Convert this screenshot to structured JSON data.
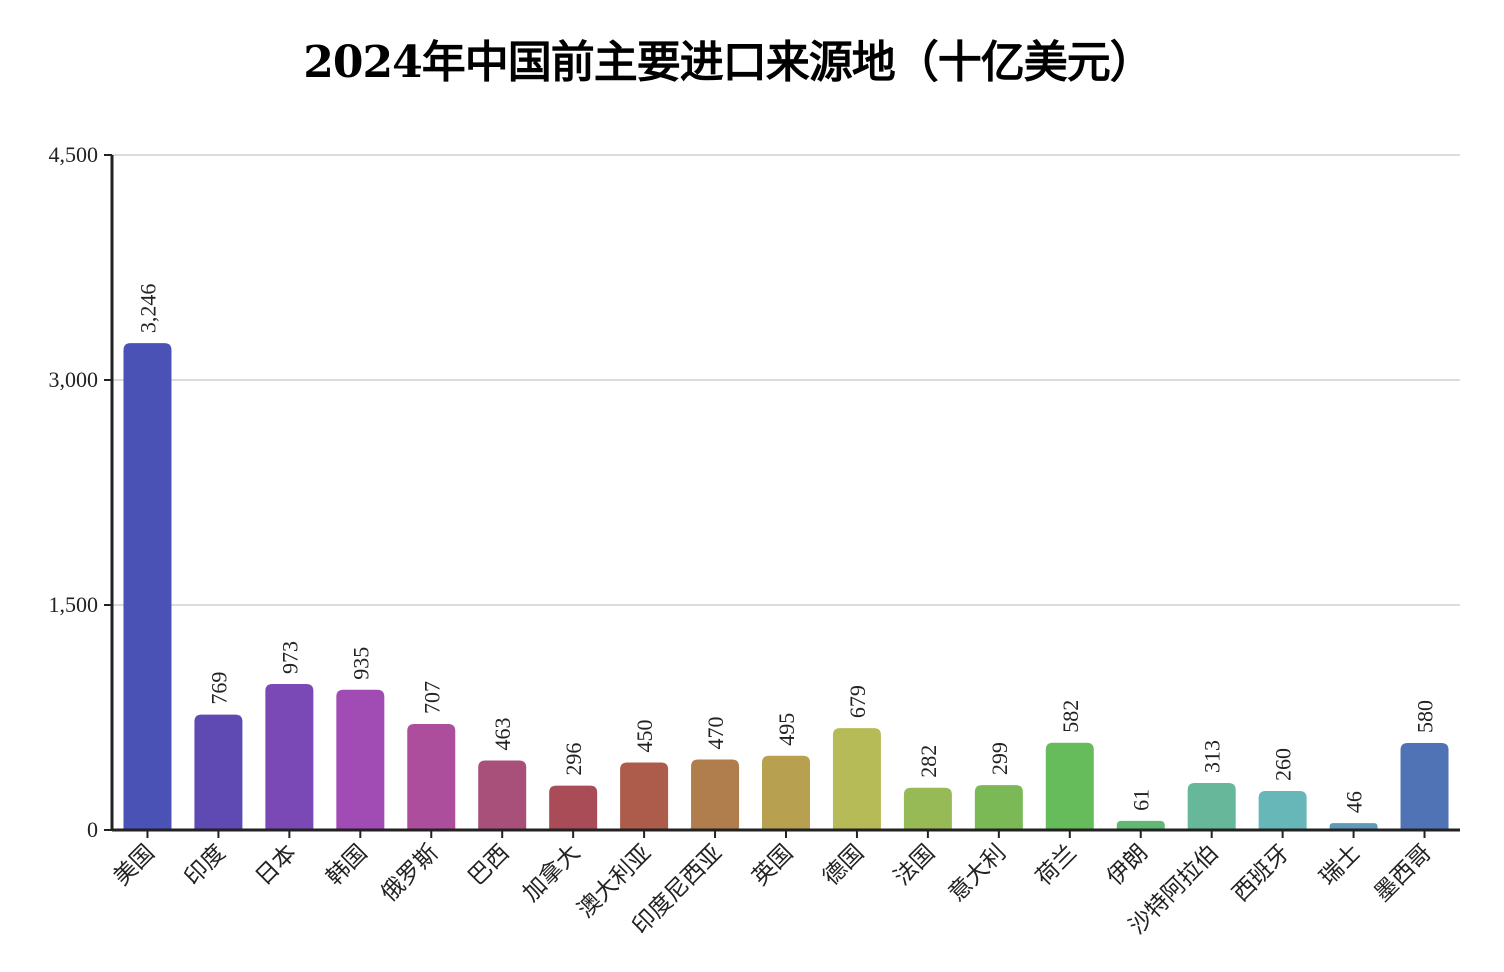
{
  "chart_data": {
    "type": "bar",
    "title": "2024年中国前主要进口来源地（十亿美元）",
    "xlabel": "",
    "ylabel": "",
    "ylim": [
      0,
      4500
    ],
    "yticks": [
      0,
      1500,
      3000,
      4500
    ],
    "ytick_labels": [
      "0",
      "1,500",
      "3,000",
      "4,500"
    ],
    "grid": true,
    "categories": [
      "美国",
      "印度",
      "日本",
      "韩国",
      "俄罗斯",
      "巴西",
      "加拿大",
      "澳大利亚",
      "印度尼西亚",
      "英国",
      "德国",
      "法国",
      "意大利",
      "荷兰",
      "伊朗",
      "沙特阿拉伯",
      "西班牙",
      "瑞士",
      "墨西哥"
    ],
    "values": [
      3246,
      769,
      973,
      935,
      707,
      463,
      296,
      450,
      470,
      495,
      679,
      282,
      299,
      582,
      61,
      313,
      260,
      46,
      580
    ],
    "value_labels": [
      "3,246",
      "769",
      "973",
      "935",
      "707",
      "463",
      "296",
      "450",
      "470",
      "495",
      "679",
      "282",
      "299",
      "582",
      "61",
      "313",
      "260",
      "46",
      "580"
    ],
    "colors": [
      "#4a52b6",
      "#5f4ab4",
      "#7a49b6",
      "#a04cb4",
      "#ad4e9c",
      "#a85079",
      "#aa4c58",
      "#ad5b4a",
      "#b07d4c",
      "#b7a151",
      "#b6bb57",
      "#97ba57",
      "#7ab955",
      "#66bb5a",
      "#62b872",
      "#67b89a",
      "#68b7b8",
      "#5f9ab8",
      "#5073b6"
    ]
  }
}
